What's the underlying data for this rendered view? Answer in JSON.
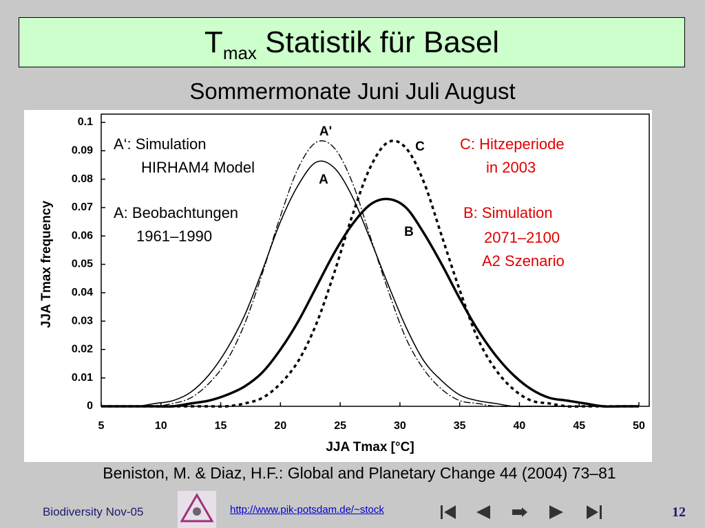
{
  "slide": {
    "title_main": "T",
    "title_sub": "max",
    "title_rest": "Statistik für Basel",
    "subtitle": "Sommermonate Juni Juli August",
    "citation": "Beniston, M. & Diaz, H.F.: Global and Planetary Change 44 (2004) 73–81",
    "footer": {
      "left": "Biodiversity Nov-05",
      "url": "http://www.pik-potsdam.de/~stock",
      "page": "12"
    }
  },
  "chart_data": {
    "type": "line",
    "x_label": "JJA Tmax [°C]",
    "y_label": "JJA Tmax frequency",
    "xlim": [
      5,
      50
    ],
    "xticks": [
      5,
      10,
      15,
      20,
      25,
      30,
      35,
      40,
      45,
      50
    ],
    "ylim": [
      0,
      0.1
    ],
    "yticks": [
      0,
      0.01,
      0.02,
      0.03,
      0.04,
      0.05,
      0.06,
      0.07,
      0.08,
      0.09,
      0.1
    ],
    "x": [
      5,
      6.5,
      8,
      9.5,
      11,
      12.5,
      14,
      15.5,
      17,
      18.5,
      20,
      21.5,
      23,
      24.5,
      26,
      27.5,
      29,
      30.5,
      32,
      33.5,
      35,
      36.5,
      38,
      39.5,
      41,
      42.5,
      44,
      45.5,
      47,
      48.5,
      50
    ],
    "series": [
      {
        "name": "A'",
        "color": "#000000",
        "style": "dashdot",
        "values": [
          0,
          0,
          0,
          0,
          0.001,
          0.003,
          0.008,
          0.016,
          0.029,
          0.047,
          0.067,
          0.084,
          0.093,
          0.091,
          0.079,
          0.06,
          0.041,
          0.024,
          0.013,
          0.006,
          0.002,
          0.001,
          0,
          0,
          0,
          0,
          0,
          0,
          0,
          0,
          0
        ]
      },
      {
        "name": "A",
        "color": "#000000",
        "style": "solid",
        "values": [
          0,
          0,
          0,
          0.001,
          0.002,
          0.005,
          0.011,
          0.02,
          0.032,
          0.048,
          0.065,
          0.078,
          0.086,
          0.084,
          0.074,
          0.059,
          0.043,
          0.028,
          0.016,
          0.009,
          0.004,
          0.002,
          0.001,
          0,
          0,
          0,
          0,
          0,
          0,
          0,
          0
        ]
      },
      {
        "name": "C",
        "color": "#000000",
        "style": "dotted",
        "values": [
          0,
          0,
          0,
          0,
          0,
          0,
          0,
          0,
          0.001,
          0.003,
          0.008,
          0.016,
          0.029,
          0.047,
          0.067,
          0.084,
          0.093,
          0.091,
          0.079,
          0.06,
          0.041,
          0.024,
          0.013,
          0.006,
          0.002,
          0.001,
          0,
          0,
          0,
          0,
          0
        ]
      },
      {
        "name": "B",
        "color": "#000000",
        "style": "bold",
        "values": [
          0,
          0,
          0,
          0,
          0,
          0.001,
          0.002,
          0.004,
          0.007,
          0.012,
          0.02,
          0.03,
          0.042,
          0.054,
          0.064,
          0.071,
          0.073,
          0.07,
          0.061,
          0.05,
          0.038,
          0.027,
          0.018,
          0.011,
          0.006,
          0.003,
          0.002,
          0.001,
          0,
          0,
          0
        ]
      }
    ],
    "annotations": [
      {
        "text": "A‘: Simulation",
        "color": "#000000"
      },
      {
        "text": "HIRHAM4 Model",
        "color": "#000000"
      },
      {
        "text": "A: Beobachtungen",
        "color": "#000000"
      },
      {
        "text": "1961–1990",
        "color": "#000000"
      },
      {
        "text": "C: Hitzeperiode",
        "color": "#e00000"
      },
      {
        "text": "in 2003",
        "color": "#e00000"
      },
      {
        "text": "B: Simulation",
        "color": "#e00000"
      },
      {
        "text": "2071–2100",
        "color": "#e00000"
      },
      {
        "text": "A2 Szenario",
        "color": "#e00000"
      }
    ]
  }
}
